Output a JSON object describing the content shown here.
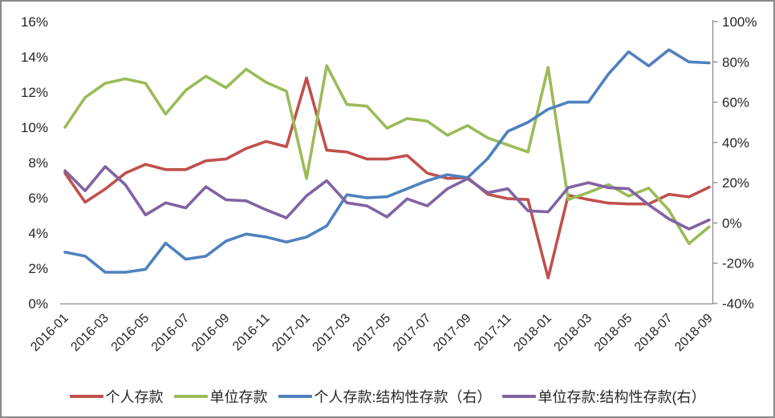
{
  "chart_data": {
    "type": "line",
    "title": "",
    "grid": false,
    "legend_position": "bottom",
    "x": [
      "2016-01",
      "2016-02",
      "2016-03",
      "2016-04",
      "2016-05",
      "2016-06",
      "2016-07",
      "2016-08",
      "2016-09",
      "2016-10",
      "2016-11",
      "2016-12",
      "2017-01",
      "2017-02",
      "2017-03",
      "2017-04",
      "2017-05",
      "2017-06",
      "2017-07",
      "2017-08",
      "2017-09",
      "2017-10",
      "2017-11",
      "2017-12",
      "2018-01",
      "2018-02",
      "2018-03",
      "2018-04",
      "2018-05",
      "2018-06",
      "2018-07",
      "2018-08",
      "2018-09"
    ],
    "x_axis_tick_labels": [
      "2016-01",
      "2016-03",
      "2016-05",
      "2016-07",
      "2016-09",
      "2016-11",
      "2017-01",
      "2017-03",
      "2017-05",
      "2017-07",
      "2017-09",
      "2017-11",
      "2018-01",
      "2018-03",
      "2018-05",
      "2018-07",
      "2018-09"
    ],
    "left_axis": {
      "min": 0,
      "max": 16,
      "ticks": [
        "0%",
        "2%",
        "4%",
        "6%",
        "8%",
        "10%",
        "12%",
        "14%",
        "16%"
      ]
    },
    "right_axis": {
      "min": -40,
      "max": 100,
      "ticks": [
        "-40%",
        "-20%",
        "0%",
        "20%",
        "40%",
        "60%",
        "80%",
        "100%"
      ]
    },
    "series": [
      {
        "name": "个人存款",
        "axis": "left",
        "color": "#C0504D",
        "values": [
          7.4,
          5.75,
          6.5,
          7.4,
          7.9,
          7.6,
          7.6,
          8.1,
          8.2,
          8.8,
          9.2,
          8.9,
          12.8,
          8.7,
          8.6,
          8.2,
          8.2,
          8.4,
          7.4,
          7.1,
          7.15,
          6.2,
          5.95,
          5.9,
          1.45,
          6.15,
          5.9,
          5.7,
          5.65,
          5.65,
          6.2,
          6.05,
          6.6
        ]
      },
      {
        "name": "单位存款",
        "axis": "left",
        "color": "#9BBB59",
        "values": [
          10.0,
          11.7,
          12.5,
          12.75,
          12.5,
          10.75,
          12.1,
          12.9,
          12.25,
          13.3,
          12.55,
          12.05,
          7.1,
          13.5,
          11.3,
          11.2,
          9.95,
          10.5,
          10.35,
          9.55,
          10.1,
          9.4,
          9.0,
          8.6,
          13.4,
          5.9,
          6.3,
          6.75,
          6.1,
          6.55,
          5.3,
          3.4,
          4.35
        ]
      },
      {
        "name": "个人存款:结构性存款（右）",
        "axis": "right",
        "color": "#4F81BD",
        "values": [
          -14.5,
          -16.5,
          -24.5,
          -24.5,
          -23,
          -10,
          -18,
          -16.5,
          -9,
          -5.5,
          -7,
          -9.5,
          -7,
          -1.5,
          14,
          12.5,
          13,
          17,
          21,
          24,
          22.5,
          32,
          45.5,
          50,
          56.5,
          60,
          60,
          74,
          85,
          78,
          86,
          80,
          79.5
        ]
      },
      {
        "name": "单位存款:结构性存款(右）",
        "axis": "right",
        "color": "#8064A2",
        "values": [
          26,
          16,
          28,
          19,
          4,
          10,
          7.5,
          18,
          11.5,
          11,
          6.5,
          2.5,
          13.5,
          21,
          10,
          8.5,
          3,
          12,
          8.5,
          17,
          22,
          15,
          17,
          6,
          5.5,
          17.5,
          20,
          17.5,
          17,
          9,
          2,
          -3,
          1.5
        ]
      }
    ],
    "axis_line_color": "#8C8C8C",
    "text_color": "#262626"
  }
}
